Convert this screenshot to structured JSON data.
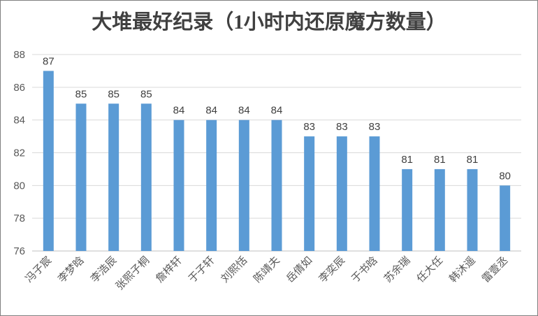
{
  "chart_data": {
    "type": "bar",
    "title": "大堆最好纪录（1小时内还原魔方数量）",
    "categories": [
      "冯子宸",
      "李梦晗",
      "李浩辰",
      "张熙子桐",
      "詹梓轩",
      "于子轩",
      "刘熙恬",
      "陈靖夫",
      "岳倩如",
      "李奕辰",
      "于书晗",
      "苏余瑞",
      "任大任",
      "韩沐遥",
      "雷壹丞"
    ],
    "values": [
      87,
      85,
      85,
      85,
      84,
      84,
      84,
      84,
      83,
      83,
      83,
      81,
      81,
      81,
      80
    ],
    "ylim": [
      76,
      88
    ],
    "yticks": [
      76,
      78,
      80,
      82,
      84,
      86,
      88
    ],
    "xlabel": "",
    "ylabel": "",
    "grid": true,
    "data_labels": true,
    "bar_color": "#5b9bd5"
  }
}
